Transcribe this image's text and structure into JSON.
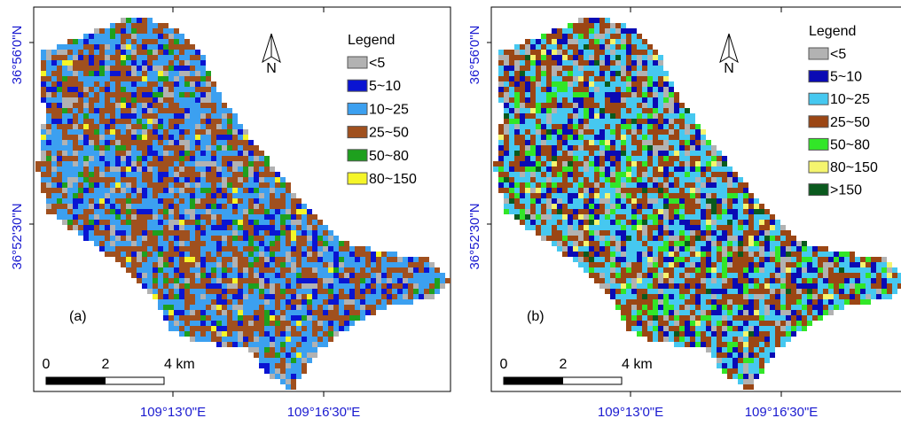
{
  "panels": [
    {
      "label": "(a)",
      "legend": {
        "title": "Legend",
        "items": [
          {
            "label": "<5",
            "color": "#b2b2b2"
          },
          {
            "label": "5~10",
            "color": "#0a14d2"
          },
          {
            "label": "10~25",
            "color": "#3ca0f0"
          },
          {
            "label": "25~50",
            "color": "#a0501e"
          },
          {
            "label": "50~80",
            "color": "#1ea01e"
          },
          {
            "label": "80~150",
            "color": "#f5f528"
          }
        ]
      },
      "latitude_labels": [
        "36°56'0\"N",
        "36°52'30\"N"
      ],
      "longitude_labels": [
        "109°13'0\"E",
        "109°16'30\"E"
      ],
      "scale_labels": [
        "0",
        "2",
        "4 km"
      ],
      "north": "N"
    },
    {
      "label": "(b)",
      "legend": {
        "title": "Legend",
        "items": [
          {
            "label": "<5",
            "color": "#b2b2b2"
          },
          {
            "label": "5~10",
            "color": "#0a0ab4"
          },
          {
            "label": "10~25",
            "color": "#46c8f0"
          },
          {
            "label": "25~50",
            "color": "#9b4614"
          },
          {
            "label": "50~80",
            "color": "#32e628"
          },
          {
            "label": "80~150",
            "color": "#f5f56e"
          },
          {
            "label": ">150",
            "color": "#0a5a1e"
          }
        ]
      },
      "latitude_labels": [
        "36°56'0\"N",
        "36°52'30\"N"
      ],
      "longitude_labels": [
        "109°13'0\"E",
        "109°16'30\"E"
      ],
      "scale_labels": [
        "0",
        "2",
        "4 km"
      ],
      "north": "N"
    }
  ]
}
